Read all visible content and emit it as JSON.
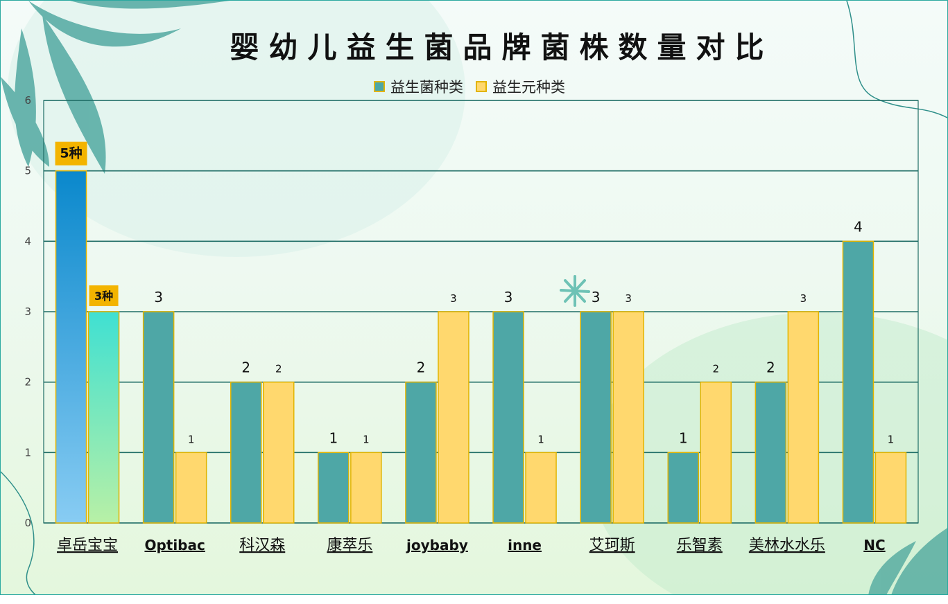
{
  "chart_data": {
    "type": "bar",
    "title": "婴幼儿益生菌品牌菌株数量对比",
    "categories": [
      "卓岳宝宝",
      "Optibac",
      "科汉森",
      "康萃乐",
      "joybaby",
      "inne",
      "艾珂斯",
      "乐智素",
      "美林水水乐",
      "NC"
    ],
    "series": [
      {
        "name": "益生菌种类",
        "values": [
          5,
          3,
          2,
          1,
          2,
          3,
          3,
          1,
          2,
          4
        ],
        "color": "#4ea7a6"
      },
      {
        "name": "益生元种类",
        "values": [
          3,
          1,
          2,
          1,
          3,
          1,
          3,
          2,
          3,
          1
        ],
        "color": "#ffd86e"
      }
    ],
    "highlight": {
      "category": "卓岳宝宝",
      "labels": [
        "5种",
        "3种"
      ],
      "colors": {
        "probiotic_top": "#0a88cc",
        "probiotic_bottom": "#88ccf3",
        "prebiotic_top": "#3fe0d2",
        "prebiotic_bottom": "#b8f0a6",
        "label_bg": "#f3b400"
      }
    },
    "ylim": [
      0,
      6
    ],
    "yticks": [
      "0",
      "1",
      "2",
      "3",
      "4",
      "5",
      "6"
    ],
    "grid": true,
    "legend_position": "top-center",
    "colors": {
      "gridline": "#1f6d66",
      "bar_border": "#e2b400",
      "frame": "#2aa9a0"
    }
  }
}
